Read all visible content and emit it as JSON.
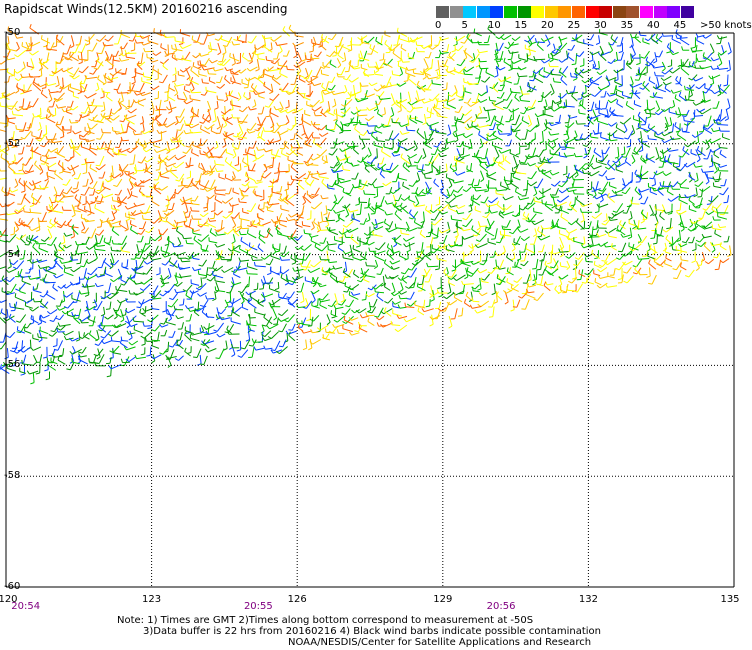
{
  "title": "Rapidscat Winds(12.5KM) 20160216 ascending",
  "legend": {
    "colors": [
      "#606060",
      "#909090",
      "#00c8ff",
      "#0096ff",
      "#0040ff",
      "#00c000",
      "#009600",
      "#ffff00",
      "#ffc800",
      "#ff9600",
      "#ff6400",
      "#ff0000",
      "#c80000",
      "#8b4513",
      "#a0522d",
      "#ff00ff",
      "#c000ff",
      "#8000ff",
      "#4000a0"
    ],
    "labels": [
      "0",
      "5",
      "10",
      "15",
      "20",
      "25",
      "30",
      "35",
      "40",
      "45",
      ">50 knots"
    ]
  },
  "map": {
    "lat_labels": [
      "-50",
      "-52",
      "-54",
      "-56",
      "-58",
      "-60"
    ],
    "lat_values": [
      -50,
      -52,
      -54,
      -56,
      -58,
      -60
    ],
    "lon_labels": [
      "120",
      "123",
      "126",
      "129",
      "132",
      "135"
    ],
    "lon_values": [
      120,
      123,
      126,
      129,
      132,
      135
    ],
    "time_labels": [
      "20:54",
      "20:55",
      "20:56"
    ],
    "time_lons": [
      120.2,
      125.2,
      130.2
    ]
  },
  "notes": {
    "line1": "Note: 1) Times are GMT 2)Times along bottom correspond to measurement at -50S",
    "line2": "3)Data buffer is 22 hrs from 20160216 4) Black wind barbs indicate possible contamination",
    "line3": "NOAA/NESDIS/Center for Satellite Applications and Research"
  }
}
